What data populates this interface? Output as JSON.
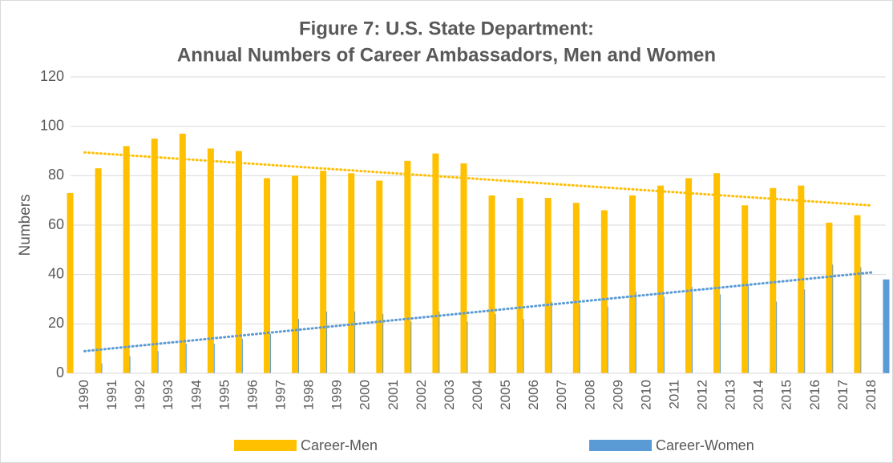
{
  "chart_data": {
    "type": "bar",
    "title": [
      "Figure 7: U.S. State Department:",
      "Annual Numbers of Career Ambassadors, Men and Women"
    ],
    "y_label": "Numbers",
    "categories": [
      "1990",
      "1991",
      "1992",
      "1993",
      "1994",
      "1995",
      "1996",
      "1997",
      "1998",
      "1999",
      "2000",
      "2001",
      "2002",
      "2003",
      "2004",
      "2005",
      "2006",
      "2007",
      "2008",
      "2009",
      "2010",
      "2011",
      "2012",
      "2013",
      "2014",
      "2015",
      "2016",
      "2017",
      "2018"
    ],
    "series": [
      {
        "name": "Career-Men",
        "color": "#FFC000",
        "values": [
          73,
          83,
          92,
          95,
          97,
          91,
          90,
          79,
          80,
          82,
          81,
          78,
          86,
          89,
          85,
          72,
          71,
          71,
          69,
          66,
          72,
          76,
          79,
          81,
          68,
          75,
          76,
          61,
          64
        ]
      },
      {
        "name": "Career-Women",
        "color": "#5B9BD5",
        "values": [
          4,
          7,
          9,
          12,
          12,
          14,
          16,
          22,
          25,
          25,
          24,
          21,
          25,
          21,
          24,
          22,
          29,
          28,
          27,
          33,
          31,
          35,
          32,
          36,
          29,
          34,
          44,
          43,
          38
        ]
      }
    ],
    "trendline": "linear",
    "ylim": [
      0,
      120
    ],
    "yticks": [
      0,
      20,
      40,
      60,
      80,
      100,
      120
    ],
    "grid": true,
    "legend": "bottom"
  }
}
